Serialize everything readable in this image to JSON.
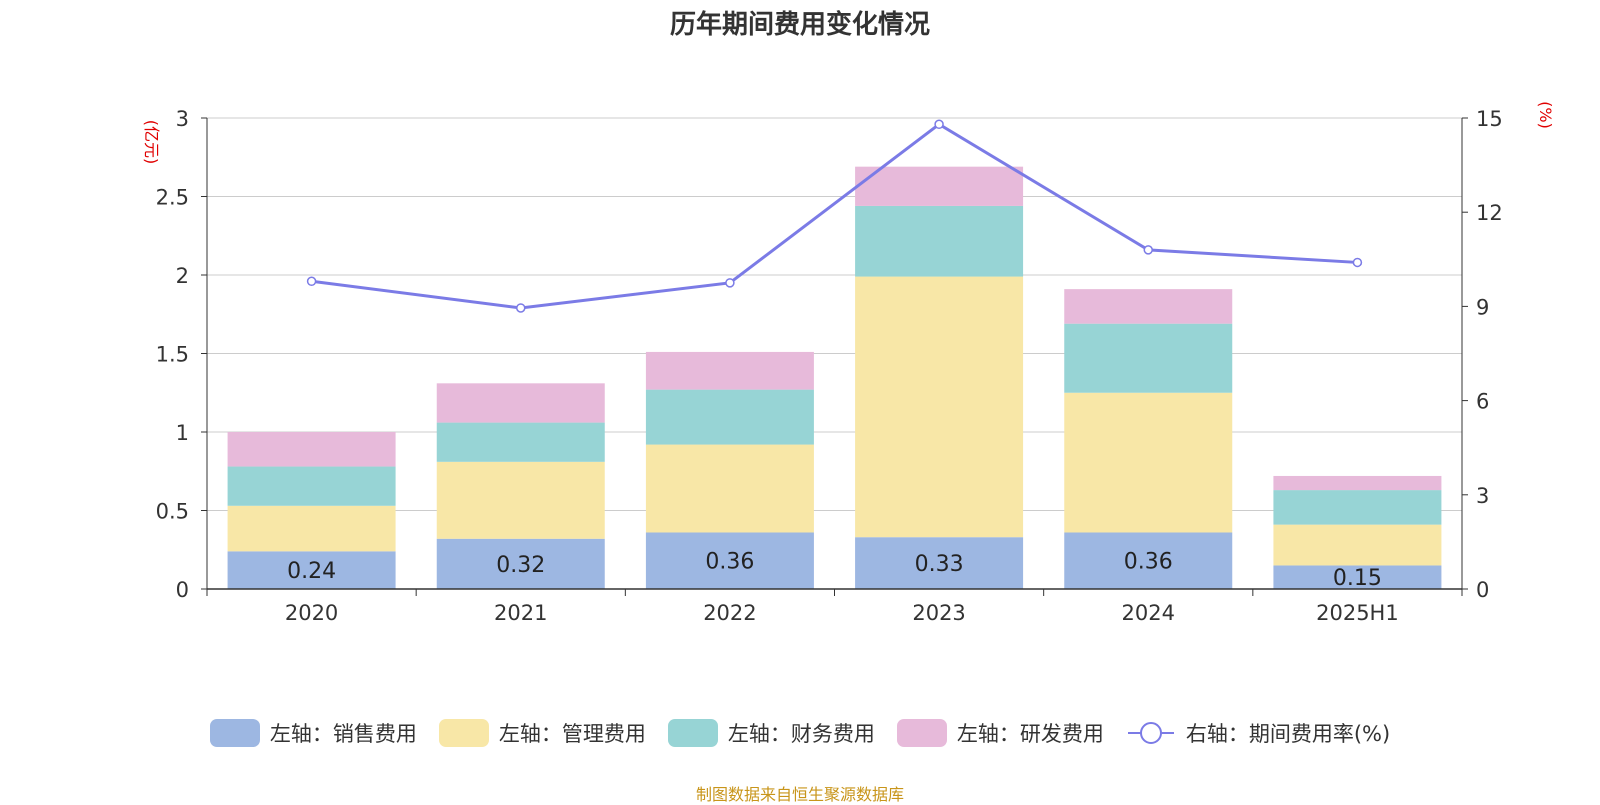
{
  "title": "历年期间费用变化情况",
  "source": "制图数据来自恒生聚源数据库",
  "colors": {
    "sales": "#9db7e2",
    "admin": "#f8e7a7",
    "finance": "#97d4d5",
    "rd": "#e7bada",
    "rate": "#7b7be6",
    "axis_unit": "#e00000"
  },
  "chart_data": {
    "type": "bar",
    "stacked": true,
    "categories": [
      "2020",
      "2021",
      "2022",
      "2023",
      "2024",
      "2025H1"
    ],
    "series": [
      {
        "name": "左轴：销售费用",
        "axis": "left",
        "values": [
          0.24,
          0.32,
          0.36,
          0.33,
          0.36,
          0.15
        ],
        "show_labels": true
      },
      {
        "name": "左轴：管理费用",
        "axis": "left",
        "values": [
          0.29,
          0.49,
          0.56,
          1.66,
          0.89,
          0.26
        ]
      },
      {
        "name": "左轴：财务费用",
        "axis": "left",
        "values": [
          0.25,
          0.25,
          0.35,
          0.45,
          0.44,
          0.22
        ]
      },
      {
        "name": "左轴：研发费用",
        "axis": "left",
        "values": [
          0.22,
          0.25,
          0.24,
          0.25,
          0.22,
          0.09
        ]
      },
      {
        "name": "右轴：期间费用率(%)",
        "axis": "right",
        "type": "line",
        "values": [
          9.8,
          8.95,
          9.75,
          14.8,
          10.8,
          10.4
        ]
      }
    ],
    "left_axis": {
      "unit": "(亿元)",
      "ylim": [
        0,
        3
      ],
      "ticks": [
        "0",
        "0.5",
        "1",
        "1.5",
        "2",
        "2.5",
        "3"
      ]
    },
    "right_axis": {
      "unit": "(%)",
      "ylim": [
        0,
        15
      ],
      "ticks": [
        "0",
        "3",
        "6",
        "9",
        "12",
        "15"
      ]
    },
    "grid": true,
    "legend_position": "bottom"
  }
}
